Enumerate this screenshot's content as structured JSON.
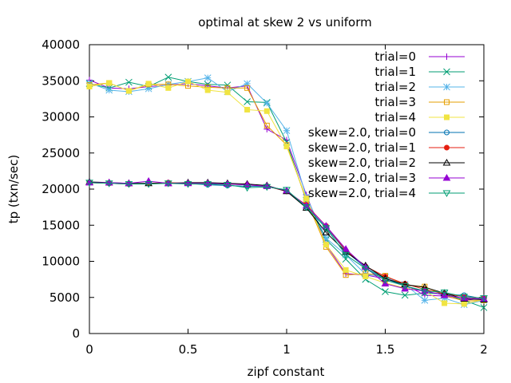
{
  "chart_data": {
    "type": "line",
    "title": "optimal at skew 2 vs uniform",
    "xlabel": "zipf constant",
    "ylabel": "tp (txn/sec)",
    "xlim": [
      0,
      2
    ],
    "ylim": [
      0,
      40000
    ],
    "x_ticks": [
      0,
      0.5,
      1,
      1.5,
      2
    ],
    "x_tick_labels": [
      "0",
      "0.5",
      "1",
      "1.5",
      "2"
    ],
    "y_ticks": [
      0,
      5000,
      10000,
      15000,
      20000,
      25000,
      30000,
      35000,
      40000
    ],
    "y_tick_labels": [
      "0",
      "5000",
      "10000",
      "15000",
      "20000",
      "25000",
      "30000",
      "35000",
      "40000"
    ],
    "grid": false,
    "legend_position": "top-right",
    "x": [
      0,
      0.1,
      0.2,
      0.3,
      0.4,
      0.5,
      0.6,
      0.7,
      0.8,
      0.9,
      1.0,
      1.1,
      1.2,
      1.3,
      1.4,
      1.5,
      1.6,
      1.7,
      1.8,
      1.9,
      2.0
    ],
    "series": [
      {
        "name": "trial=0",
        "color": "#9400d3",
        "marker": "plus",
        "values": [
          35100,
          34000,
          33900,
          34200,
          34400,
          34600,
          34300,
          34000,
          34300,
          28300,
          26800,
          19200,
          12300,
          8300,
          8100,
          7600,
          6800,
          5300,
          5200,
          4600,
          4900
        ]
      },
      {
        "name": "trial=1",
        "color": "#009e73",
        "marker": "cross",
        "values": [
          34600,
          34000,
          34800,
          34200,
          35500,
          34900,
          34500,
          34400,
          32100,
          32000,
          26500,
          18400,
          13000,
          10300,
          7500,
          5800,
          5300,
          5600,
          5500,
          4600,
          3600
        ]
      },
      {
        "name": "trial=2",
        "color": "#56b4e9",
        "marker": "star",
        "values": [
          34700,
          33700,
          33500,
          33900,
          34500,
          34900,
          35400,
          33500,
          34600,
          31900,
          28100,
          18900,
          13200,
          10900,
          8200,
          7800,
          6800,
          4600,
          4900,
          4000,
          4600
        ]
      },
      {
        "name": "trial=3",
        "color": "#e69f00",
        "marker": "square-open",
        "values": [
          34400,
          34700,
          33600,
          34500,
          34500,
          34300,
          34100,
          34000,
          34000,
          28800,
          26100,
          18500,
          12000,
          8100,
          8300,
          8000,
          6700,
          6500,
          5300,
          4500,
          4600
        ]
      },
      {
        "name": "trial=4",
        "color": "#f0e442",
        "marker": "square-filled",
        "values": [
          34200,
          34700,
          33600,
          34600,
          34000,
          34900,
          33700,
          33400,
          31000,
          30800,
          25900,
          18700,
          12300,
          8800,
          7900,
          7000,
          6300,
          5900,
          4200,
          4100,
          4700
        ]
      },
      {
        "name": "skew=2.0, trial=0",
        "color": "#0072b2",
        "marker": "circle-open",
        "values": [
          20900,
          20800,
          20700,
          20800,
          20800,
          20800,
          20600,
          20500,
          20400,
          20400,
          19700,
          17500,
          14700,
          11400,
          9100,
          7600,
          6600,
          5800,
          5400,
          5300,
          4800
        ]
      },
      {
        "name": "skew=2.0, trial=1",
        "color": "#e51e10",
        "marker": "circle-filled",
        "values": [
          20900,
          20800,
          20700,
          20800,
          20900,
          20800,
          20800,
          20700,
          20600,
          20400,
          19700,
          17800,
          14900,
          11500,
          9300,
          7900,
          6900,
          6100,
          5500,
          5100,
          4900
        ]
      },
      {
        "name": "skew=2.0, trial=2",
        "color": "#000000",
        "marker": "triangle-open",
        "values": [
          21000,
          20900,
          20800,
          20800,
          20800,
          20900,
          20900,
          20800,
          20700,
          20500,
          19700,
          17400,
          14000,
          11300,
          9400,
          7600,
          6800,
          6400,
          5600,
          4800,
          4700
        ]
      },
      {
        "name": "skew=2.0, trial=3",
        "color": "#9400d3",
        "marker": "triangle-filled",
        "values": [
          20900,
          20900,
          20800,
          21100,
          20800,
          20800,
          20800,
          20700,
          20600,
          20400,
          19800,
          17700,
          14900,
          11700,
          9200,
          6900,
          6200,
          5900,
          5300,
          4900,
          4800
        ]
      },
      {
        "name": "skew=2.0, trial=4",
        "color": "#009e73",
        "marker": "triangle-down-open",
        "values": [
          20900,
          20800,
          20700,
          20700,
          20800,
          20700,
          20700,
          20600,
          20200,
          20300,
          19900,
          17500,
          14600,
          10900,
          9000,
          7400,
          6600,
          5900,
          5700,
          5100,
          4900
        ]
      }
    ]
  }
}
